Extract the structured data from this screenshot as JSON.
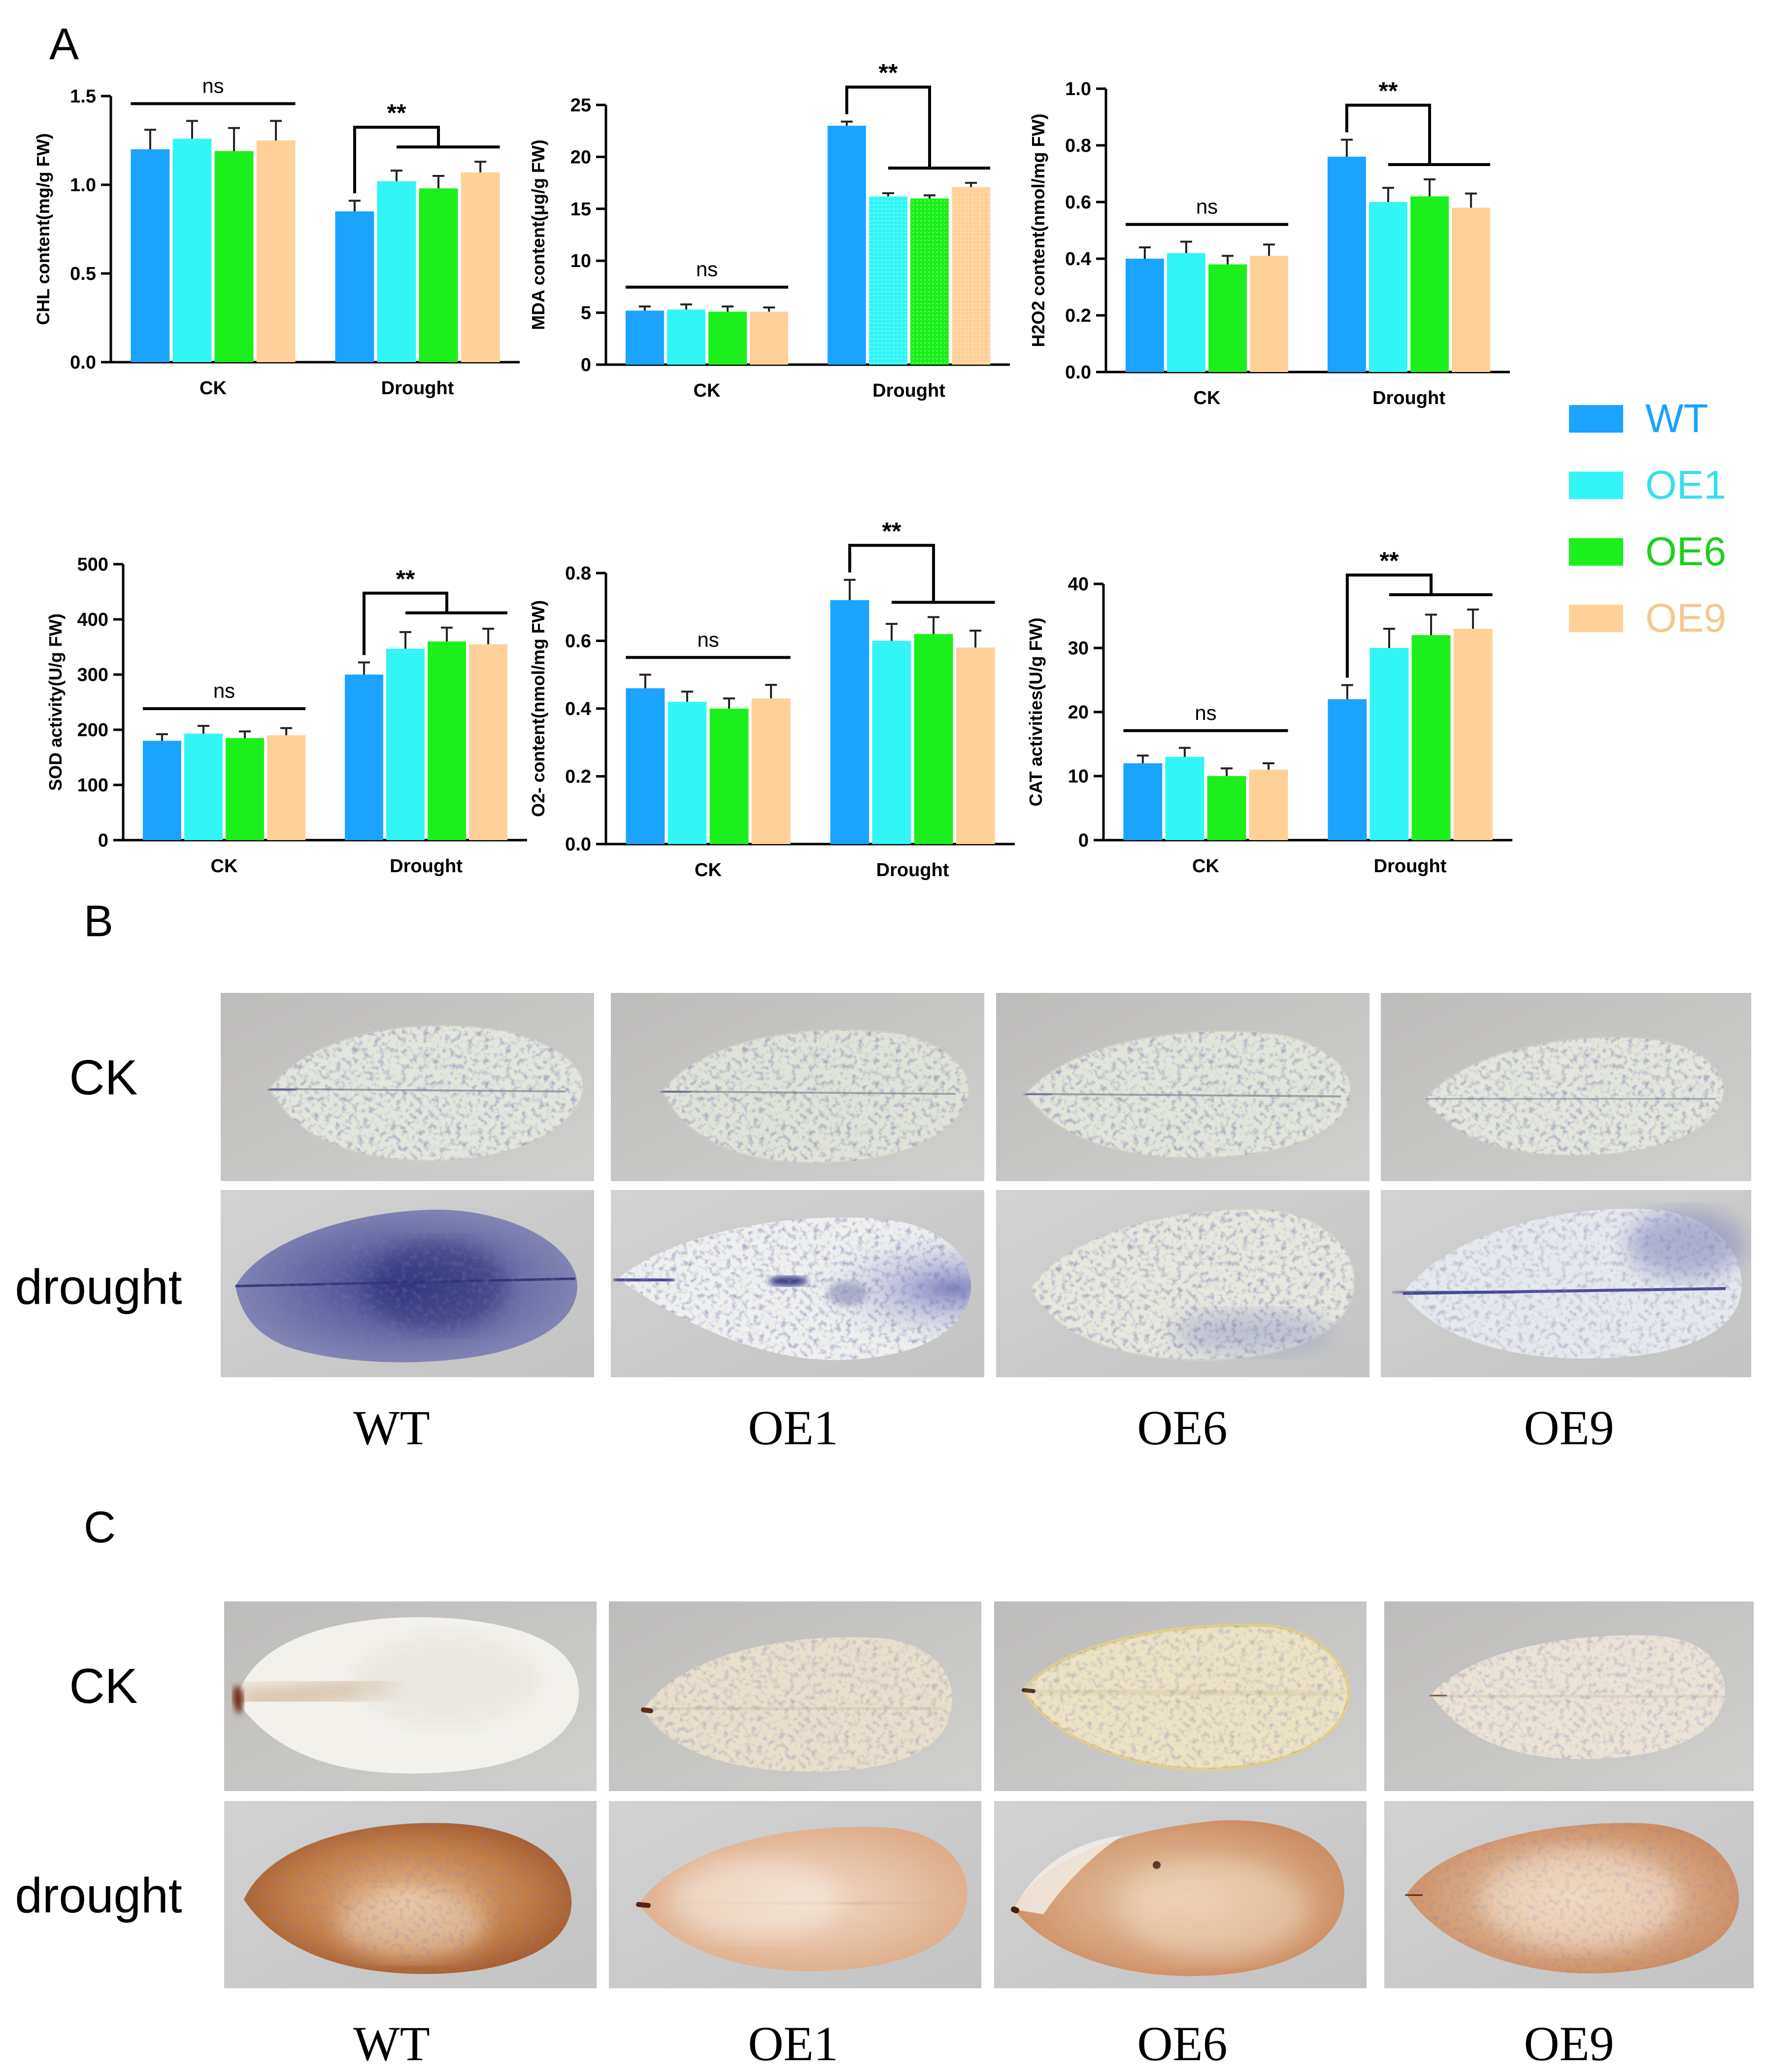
{
  "panels": {
    "a": "A",
    "b": "B",
    "c": "C"
  },
  "legend": {
    "items": [
      {
        "label": "WT",
        "color": "#1aa3ff"
      },
      {
        "label": "OE1",
        "color": "#33f5f5"
      },
      {
        "label": "OE6",
        "color": "#1cf01c"
      },
      {
        "label": "OE9",
        "color": "#ffd199"
      }
    ]
  },
  "chart_data": [
    {
      "type": "bar",
      "ylabel": "CHL content(mg/g FW)",
      "categories": [
        "CK",
        "Drought"
      ],
      "ylim": [
        0,
        1.5
      ],
      "yticks": [
        "0.0",
        "0.5",
        "1.0",
        "1.5"
      ],
      "series": [
        {
          "name": "WT",
          "values": [
            1.2,
            0.85
          ],
          "errors": [
            0.11,
            0.06
          ]
        },
        {
          "name": "OE1",
          "values": [
            1.26,
            1.02
          ],
          "errors": [
            0.1,
            0.06
          ]
        },
        {
          "name": "OE6",
          "values": [
            1.19,
            0.98
          ],
          "errors": [
            0.13,
            0.07
          ]
        },
        {
          "name": "OE9",
          "values": [
            1.25,
            1.07
          ],
          "errors": [
            0.11,
            0.06
          ]
        }
      ],
      "annotations": {
        "ck": "ns",
        "drought": "**"
      }
    },
    {
      "type": "bar",
      "ylabel": "MDA content(μg/g FW)",
      "categories": [
        "CK",
        "Drought"
      ],
      "ylim": [
        0,
        25
      ],
      "yticks": [
        "0",
        "5",
        "10",
        "15",
        "20",
        "25"
      ],
      "series": [
        {
          "name": "WT",
          "values": [
            5.2,
            23.0
          ],
          "errors": [
            0.4,
            0.4
          ]
        },
        {
          "name": "OE1",
          "values": [
            5.3,
            16.2
          ],
          "errors": [
            0.5,
            0.3
          ]
        },
        {
          "name": "OE6",
          "values": [
            5.1,
            16.0
          ],
          "errors": [
            0.5,
            0.3
          ]
        },
        {
          "name": "OE9",
          "values": [
            5.1,
            17.1
          ],
          "errors": [
            0.4,
            0.4
          ]
        }
      ],
      "annotations": {
        "ck": "ns",
        "drought": "**"
      }
    },
    {
      "type": "bar",
      "ylabel": "H2O2 content(nmol/mg FW)",
      "categories": [
        "CK",
        "Drought"
      ],
      "ylim": [
        0,
        1.0
      ],
      "yticks": [
        "0.0",
        "0.2",
        "0.4",
        "0.6",
        "0.8",
        "1.0"
      ],
      "series": [
        {
          "name": "WT",
          "values": [
            0.4,
            0.76
          ],
          "errors": [
            0.04,
            0.06
          ]
        },
        {
          "name": "OE1",
          "values": [
            0.42,
            0.6
          ],
          "errors": [
            0.04,
            0.05
          ]
        },
        {
          "name": "OE6",
          "values": [
            0.38,
            0.62
          ],
          "errors": [
            0.03,
            0.06
          ]
        },
        {
          "name": "OE9",
          "values": [
            0.41,
            0.58
          ],
          "errors": [
            0.04,
            0.05
          ]
        }
      ],
      "annotations": {
        "ck": "ns",
        "drought": "**"
      }
    },
    {
      "type": "bar",
      "ylabel": "SOD activity(U/g FW)",
      "categories": [
        "CK",
        "Drought"
      ],
      "ylim": [
        0,
        500
      ],
      "yticks": [
        "0",
        "100",
        "200",
        "300",
        "400",
        "500"
      ],
      "series": [
        {
          "name": "WT",
          "values": [
            180,
            300
          ],
          "errors": [
            12,
            22
          ]
        },
        {
          "name": "OE1",
          "values": [
            193,
            347
          ],
          "errors": [
            14,
            30
          ]
        },
        {
          "name": "OE6",
          "values": [
            185,
            360
          ],
          "errors": [
            12,
            25
          ]
        },
        {
          "name": "OE9",
          "values": [
            190,
            355
          ],
          "errors": [
            13,
            28
          ]
        }
      ],
      "annotations": {
        "ck": "ns",
        "drought": "**"
      }
    },
    {
      "type": "bar",
      "ylabel": "O2- content(nmol/mg FW)",
      "categories": [
        "CK",
        "Drought"
      ],
      "ylim": [
        0,
        0.8
      ],
      "yticks": [
        "0.0",
        "0.2",
        "0.4",
        "0.6",
        "0.8"
      ],
      "series": [
        {
          "name": "WT",
          "values": [
            0.46,
            0.72
          ],
          "errors": [
            0.04,
            0.06
          ]
        },
        {
          "name": "OE1",
          "values": [
            0.42,
            0.6
          ],
          "errors": [
            0.03,
            0.05
          ]
        },
        {
          "name": "OE6",
          "values": [
            0.4,
            0.62
          ],
          "errors": [
            0.03,
            0.05
          ]
        },
        {
          "name": "OE9",
          "values": [
            0.43,
            0.58
          ],
          "errors": [
            0.04,
            0.05
          ]
        }
      ],
      "annotations": {
        "ck": "ns",
        "drought": "**"
      }
    },
    {
      "type": "bar",
      "ylabel": "CAT activities(U/g FW)",
      "categories": [
        "CK",
        "Drought"
      ],
      "ylim": [
        0,
        40
      ],
      "yticks": [
        "0",
        "10",
        "20",
        "30",
        "40"
      ],
      "series": [
        {
          "name": "WT",
          "values": [
            12,
            22
          ],
          "errors": [
            1.2,
            2.2
          ]
        },
        {
          "name": "OE1",
          "values": [
            13,
            30
          ],
          "errors": [
            1.4,
            3.0
          ]
        },
        {
          "name": "OE6",
          "values": [
            10,
            32
          ],
          "errors": [
            1.2,
            3.2
          ]
        },
        {
          "name": "OE9",
          "values": [
            11,
            33
          ],
          "errors": [
            1.0,
            3.0
          ]
        }
      ],
      "annotations": {
        "ck": "ns",
        "drought": "**"
      }
    }
  ],
  "staining_b": {
    "rows": [
      "CK",
      "drought"
    ],
    "columns": [
      "WT",
      "OE1",
      "OE6",
      "OE9"
    ]
  },
  "staining_c": {
    "rows": [
      "CK",
      "drought"
    ],
    "columns": [
      "WT",
      "OE1",
      "OE6",
      "OE9"
    ]
  }
}
